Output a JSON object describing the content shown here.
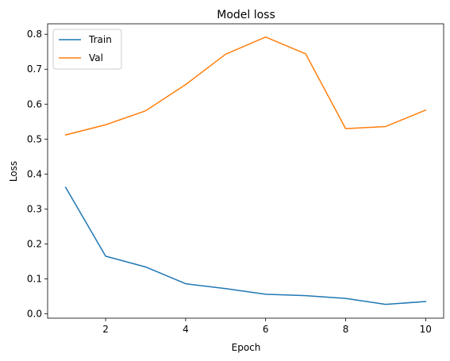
{
  "chart_data": {
    "type": "line",
    "title": "Model loss",
    "xlabel": "Epoch",
    "ylabel": "Loss",
    "xlim": [
      0.55,
      10.45
    ],
    "ylim": [
      -0.0125,
      0.83
    ],
    "xticks": [
      2,
      4,
      6,
      8,
      10
    ],
    "yticks": [
      0.0,
      0.1,
      0.2,
      0.3,
      0.4,
      0.5,
      0.6,
      0.7,
      0.8
    ],
    "grid": false,
    "legend": "top-left",
    "x": [
      1,
      2,
      3,
      4,
      5,
      6,
      7,
      8,
      9,
      10
    ],
    "series": [
      {
        "name": "Train",
        "color": "#1f77b4",
        "values": [
          0.362,
          0.165,
          0.134,
          0.086,
          0.072,
          0.056,
          0.052,
          0.044,
          0.027,
          0.035
        ]
      },
      {
        "name": "Val",
        "color": "#ff7f0e",
        "values": [
          0.512,
          0.541,
          0.581,
          0.656,
          0.743,
          0.792,
          0.744,
          0.53,
          0.536,
          0.583
        ]
      }
    ]
  }
}
